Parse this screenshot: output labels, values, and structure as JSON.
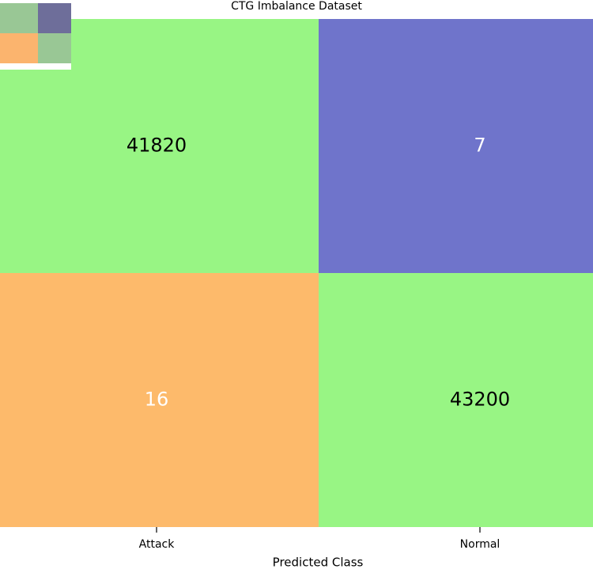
{
  "chart_data": {
    "type": "heatmap",
    "title": "CTG Imbalance Dataset",
    "x_label": "Predicted Class",
    "categories": [
      "Attack",
      "Normal"
    ],
    "values": [
      [
        41820,
        7
      ],
      [
        16,
        43200
      ]
    ],
    "colors": [
      [
        "#98f584",
        "#6f74cb"
      ],
      [
        "#fdba6b",
        "#98f584"
      ]
    ],
    "text_colors": [
      [
        "#000000",
        "#ffffff"
      ],
      [
        "#ffffff",
        "#000000"
      ]
    ]
  }
}
